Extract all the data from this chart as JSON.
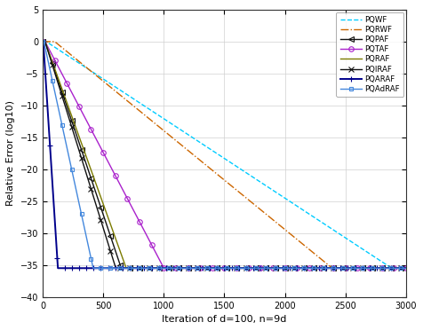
{
  "title": "",
  "xlabel": "Iteration of d=100, n=9d",
  "ylabel": "Relative Error (log10)",
  "xlim": [
    0,
    3000
  ],
  "ylim": [
    -40,
    5
  ],
  "yticks": [
    5,
    0,
    -5,
    -10,
    -15,
    -20,
    -25,
    -30,
    -35,
    -40
  ],
  "xticks": [
    0,
    500,
    1000,
    1500,
    2000,
    2500,
    3000
  ],
  "floor": -35.5,
  "curves": [
    {
      "name": "PQWF",
      "color": "#00CCFF",
      "ls": "--",
      "marker": null,
      "me": 300,
      "ms": 5,
      "lw": 1.0,
      "slope_start": 30,
      "slope_end": 3000,
      "slope": -0.01245
    },
    {
      "name": "PQRWF",
      "color": "#CC6600",
      "ls": "-.",
      "marker": null,
      "me": 300,
      "ms": 5,
      "lw": 1.0,
      "slope_start": 100,
      "slope_end": 3000,
      "slope": -0.0155
    },
    {
      "name": "PQPAF",
      "color": "#111111",
      "ls": "-",
      "marker": "<",
      "me": 80,
      "ms": 4,
      "lw": 1.0,
      "slope_start": 20,
      "slope_end": 1020,
      "slope": -0.0565
    },
    {
      "name": "PQTAF",
      "color": "#AA22CC",
      "ls": "-",
      "marker": "o",
      "me": 100,
      "ms": 4,
      "lw": 1.0,
      "slope_start": 20,
      "slope_end": 1550,
      "slope": -0.0362
    },
    {
      "name": "PQRAF",
      "color": "#7B7B00",
      "ls": "-",
      "marker": null,
      "me": 100,
      "ms": 5,
      "lw": 1.0,
      "slope_start": 20,
      "slope_end": 1050,
      "slope": -0.053
    },
    {
      "name": "PQIRAF",
      "color": "#111111",
      "ls": "-",
      "marker": "x",
      "me": 80,
      "ms": 4,
      "lw": 1.0,
      "slope_start": 20,
      "slope_end": 920,
      "slope": -0.0608
    },
    {
      "name": "PQARAF",
      "color": "#00008B",
      "ls": "-",
      "marker": "+",
      "me": 60,
      "ms": 5,
      "lw": 1.4,
      "slope_start": 5,
      "slope_end": 205,
      "slope": -0.295
    },
    {
      "name": "PQAdRAF",
      "color": "#4488DD",
      "ls": "-",
      "marker": "s",
      "me": 80,
      "ms": 3,
      "lw": 1.0,
      "slope_start": 10,
      "slope_end": 660,
      "slope": -0.0872
    }
  ]
}
